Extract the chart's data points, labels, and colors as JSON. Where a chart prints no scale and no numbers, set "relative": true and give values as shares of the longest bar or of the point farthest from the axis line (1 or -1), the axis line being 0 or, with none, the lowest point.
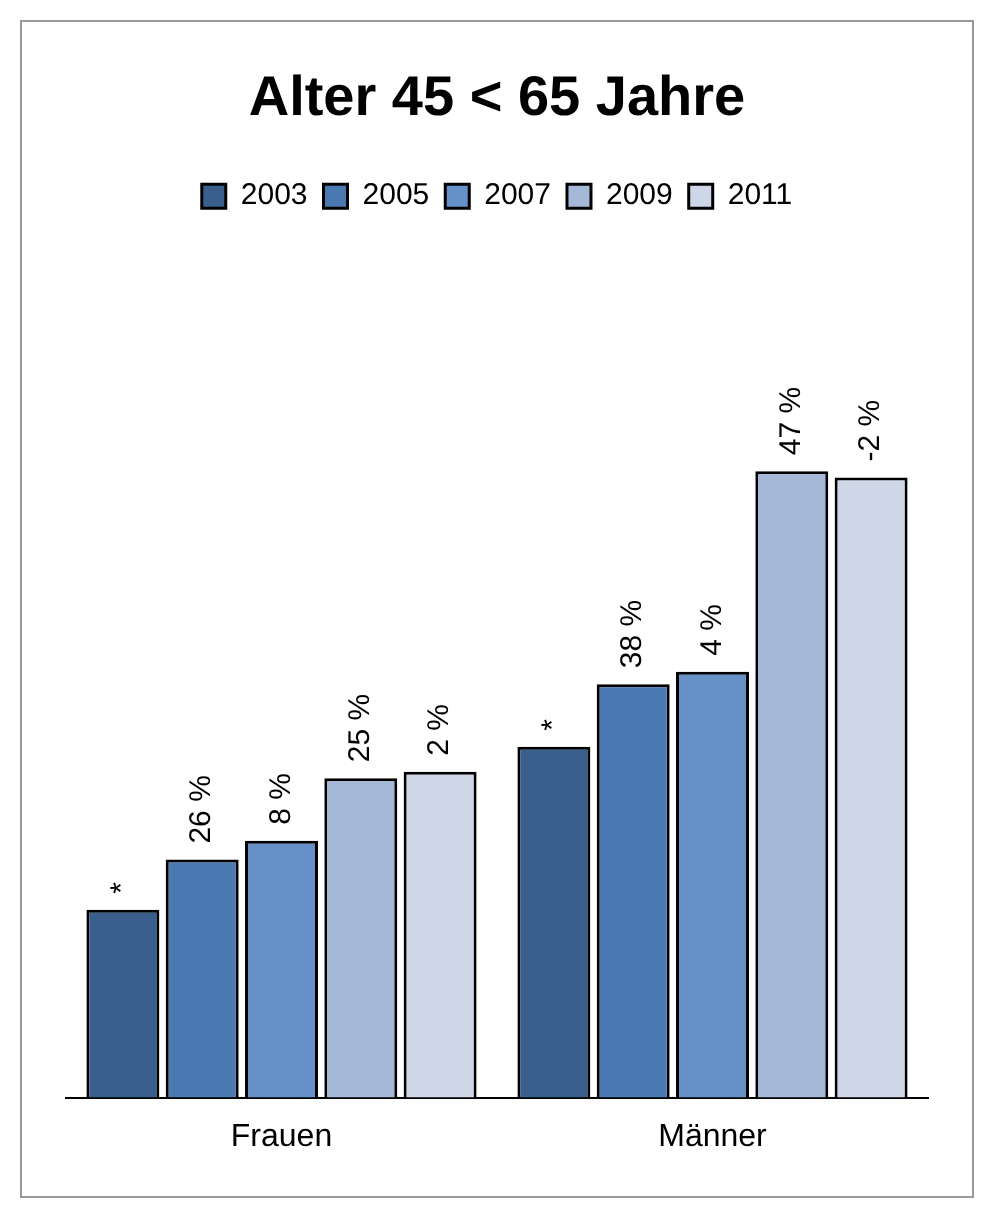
{
  "chart_data": {
    "type": "bar",
    "title": "Alter 45 < 65 Jahre",
    "categories": [
      "Frauen",
      "Männer"
    ],
    "relative": true,
    "legend": "top",
    "series": [
      {
        "name": "2003",
        "color": "#3a5f8c",
        "values": [
          0.3,
          0.56
        ]
      },
      {
        "name": "2005",
        "color": "#4a78b0",
        "values": [
          0.38,
          0.66
        ]
      },
      {
        "name": "2007",
        "color": "#6690c8",
        "values": [
          0.41,
          0.68
        ]
      },
      {
        "name": "2009",
        "color": "#a5b8d8",
        "values": [
          0.51,
          1
        ]
      },
      {
        "name": "2011",
        "color": "#cdd7e8",
        "values": [
          0.52,
          0.99
        ]
      }
    ],
    "annotations": [
      "*",
      "26 %",
      "8 %",
      "25 %",
      "2 %",
      "*",
      "38 %",
      "4 %",
      "47 %",
      "-2 %"
    ]
  }
}
